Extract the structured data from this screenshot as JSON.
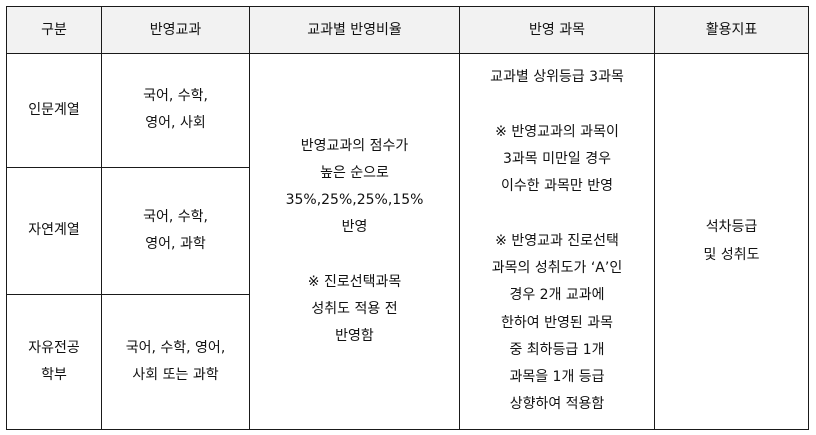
{
  "headers": [
    "구분",
    "반영교과",
    "교과별 반영비율",
    "반영 과목",
    "활용지표"
  ],
  "rows": [
    {
      "category": [
        "인문계열"
      ],
      "subjects": [
        "국어, 수학,",
        "영어, 사회"
      ]
    },
    {
      "category": [
        "자연계열"
      ],
      "subjects": [
        "국어, 수학,",
        "영어, 과학"
      ]
    },
    {
      "category": [
        "자유전공",
        "학부"
      ],
      "subjects": [
        "국어, 수학, 영어,",
        "사회 또는 과학"
      ]
    }
  ],
  "ratio": {
    "main": [
      "반영교과의 점수가",
      "높은 순으로",
      "35%,25%,25%,15%",
      "반영"
    ],
    "note": [
      "※ 진로선택과목",
      "성취도 적용 전",
      "반영함"
    ]
  },
  "course": {
    "line1": [
      "교과별 상위등급 3과목"
    ],
    "note1": [
      "※ 반영교과의 과목이",
      "3과목 미만일 경우",
      "이수한 과목만 반영"
    ],
    "note2": [
      "※ 반영교과 진로선택",
      "과목의 성취도가 ‘A’인",
      "경우 2개 교과에",
      "한하여 반영된 과목",
      "중 최하등급 1개",
      "과목을 1개 등급",
      "상향하여 적용함"
    ]
  },
  "indicator": [
    "석차등급",
    "및 성취도"
  ]
}
